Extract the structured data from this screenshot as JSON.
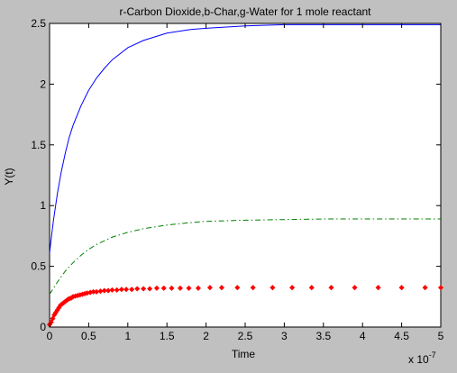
{
  "chart_data": {
    "type": "line",
    "title": "r-Carbon Dioxide,b-Char,g-Water for 1 mole reactant",
    "xlabel": "Time",
    "ylabel": "Y(t)",
    "x_exponent_label": "x 10",
    "x_exponent_power": "-7",
    "xlim": [
      0,
      5
    ],
    "ylim": [
      0,
      2.5
    ],
    "xticks": [
      0,
      0.5,
      1,
      1.5,
      2,
      2.5,
      3,
      3.5,
      4,
      4.5,
      5
    ],
    "xtick_labels": [
      "0",
      "0.5",
      "1",
      "1.5",
      "2",
      "2.5",
      "3",
      "3.5",
      "4",
      "4.5",
      "5"
    ],
    "yticks": [
      0,
      0.5,
      1,
      1.5,
      2,
      2.5
    ],
    "ytick_labels": [
      "0",
      "0.5",
      "1",
      "1.5",
      "2",
      "2.5"
    ],
    "grid": false,
    "series": [
      {
        "color": "#0000ff",
        "style": "solid",
        "x": [
          0,
          0.025,
          0.05,
          0.1,
          0.15,
          0.2,
          0.25,
          0.3,
          0.4,
          0.5,
          0.6,
          0.7,
          0.8,
          1.0,
          1.2,
          1.5,
          1.8,
          2.0,
          2.5,
          3.0,
          3.5,
          4.0,
          4.5,
          5.0
        ],
        "y": [
          0.61,
          0.75,
          0.88,
          1.1,
          1.28,
          1.43,
          1.56,
          1.66,
          1.82,
          1.95,
          2.05,
          2.13,
          2.2,
          2.3,
          2.36,
          2.42,
          2.45,
          2.46,
          2.48,
          2.49,
          2.49,
          2.49,
          2.49,
          2.49
        ]
      },
      {
        "color": "#007f00",
        "style": "dashdot",
        "x": [
          0,
          0.05,
          0.1,
          0.2,
          0.3,
          0.4,
          0.5,
          0.6,
          0.8,
          1.0,
          1.2,
          1.5,
          1.8,
          2.0,
          2.5,
          3.0,
          3.5,
          4.0,
          4.5,
          5.0
        ],
        "y": [
          0.27,
          0.32,
          0.37,
          0.46,
          0.53,
          0.59,
          0.64,
          0.68,
          0.74,
          0.78,
          0.81,
          0.84,
          0.86,
          0.87,
          0.88,
          0.885,
          0.89,
          0.89,
          0.89,
          0.89
        ]
      },
      {
        "color": "#ff0000",
        "style": "markers",
        "x": [
          0,
          0.02,
          0.04,
          0.06,
          0.08,
          0.1,
          0.12,
          0.14,
          0.16,
          0.18,
          0.2,
          0.22,
          0.24,
          0.26,
          0.28,
          0.3,
          0.33,
          0.36,
          0.39,
          0.42,
          0.45,
          0.48,
          0.52,
          0.56,
          0.6,
          0.65,
          0.7,
          0.75,
          0.8,
          0.86,
          0.92,
          0.98,
          1.05,
          1.12,
          1.2,
          1.28,
          1.37,
          1.46,
          1.56,
          1.67,
          1.78,
          1.9,
          2.05,
          2.2,
          2.4,
          2.6,
          2.85,
          3.1,
          3.35,
          3.6,
          3.9,
          4.2,
          4.5,
          4.8,
          5.0
        ],
        "y": [
          0.02,
          0.04,
          0.07,
          0.1,
          0.12,
          0.14,
          0.16,
          0.18,
          0.19,
          0.2,
          0.21,
          0.22,
          0.23,
          0.235,
          0.24,
          0.25,
          0.255,
          0.26,
          0.265,
          0.27,
          0.275,
          0.28,
          0.285,
          0.29,
          0.29,
          0.295,
          0.3,
          0.3,
          0.305,
          0.305,
          0.31,
          0.31,
          0.31,
          0.315,
          0.315,
          0.315,
          0.32,
          0.32,
          0.32,
          0.32,
          0.32,
          0.32,
          0.325,
          0.325,
          0.325,
          0.325,
          0.325,
          0.325,
          0.325,
          0.325,
          0.325,
          0.325,
          0.325,
          0.325,
          0.325
        ]
      }
    ]
  }
}
